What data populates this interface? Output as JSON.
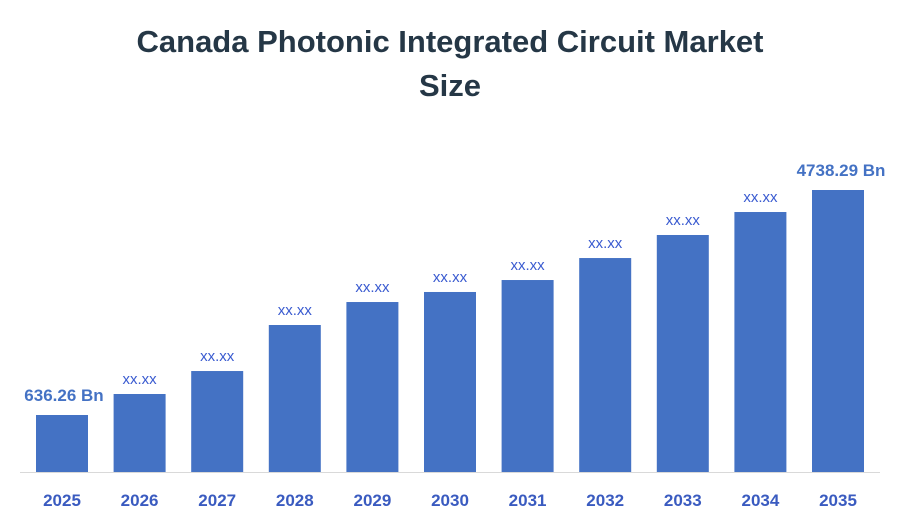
{
  "chart_data": {
    "type": "bar",
    "title_lines": [
      "Canada Photonic Integrated Circuit Market",
      "Size"
    ],
    "categories": [
      "2025",
      "2026",
      "2027",
      "2028",
      "2029",
      "2030",
      "2031",
      "2032",
      "2033",
      "2034",
      "2035"
    ],
    "values": [
      636.26,
      1019,
      1438,
      2277,
      2696,
      2879,
      3097,
      3498,
      3918,
      4337,
      4738.29
    ],
    "data_labels": [
      "636.26 Bn",
      "xx.xx",
      "xx.xx",
      "xx.xx",
      "xx.xx",
      "xx.xx",
      "xx.xx",
      "xx.xx",
      "xx.xx",
      "xx.xx",
      "4738.29 Bn"
    ],
    "units": "Bn",
    "xlabel": "",
    "ylabel": "",
    "grid": false,
    "legend": "none",
    "colors": {
      "bar": "#4472C4",
      "label": "#3A5BD0",
      "endpoint_label": "#4472C4",
      "title": "#253746",
      "axis": "#D9D9D9"
    }
  }
}
